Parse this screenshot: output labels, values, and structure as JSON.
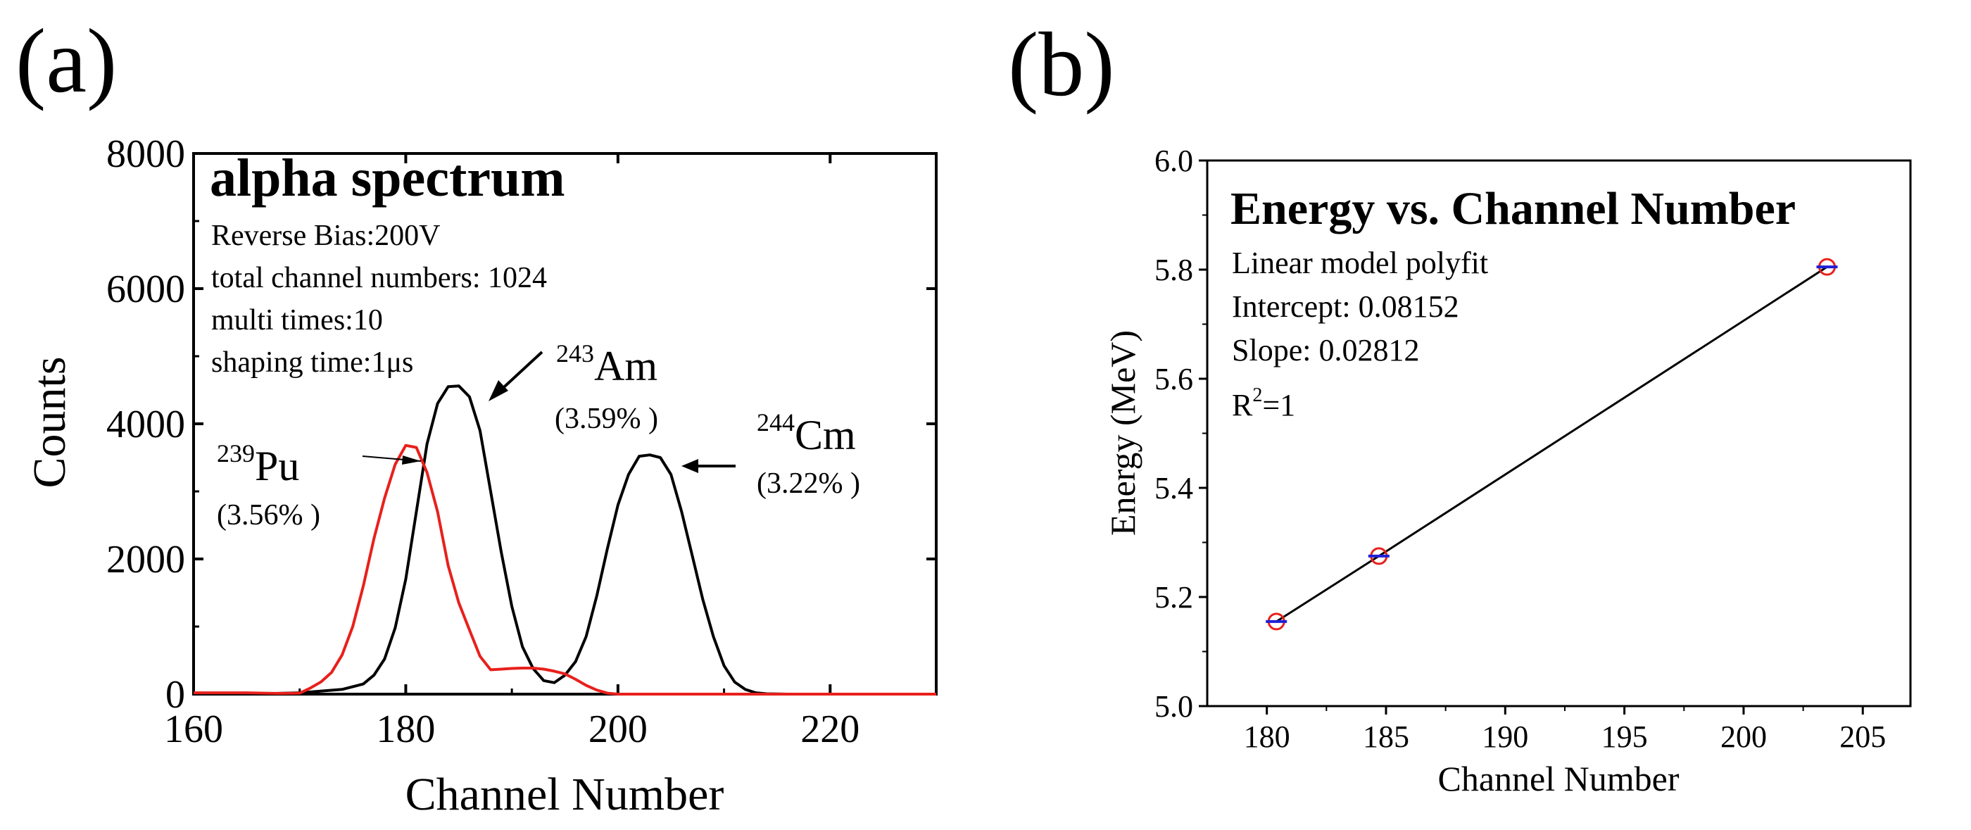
{
  "panel_a_label": "(a)",
  "panel_b_label": "(b)",
  "colors": {
    "series_am_cm": "#000000",
    "series_pu": "#e8201c",
    "marker_circle": "#e8201c",
    "marker_bar": "#1f1fd6"
  },
  "chart_data": [
    {
      "type": "line",
      "title": "alpha spectrum",
      "info_lines": [
        "Reverse Bias:200V",
        "total channel numbers: 1024",
        "multi times:10",
        "shaping time:1μs"
      ],
      "xlabel": "Channel Number",
      "ylabel": "Counts",
      "xlim": [
        160,
        230
      ],
      "ylim": [
        0,
        8000
      ],
      "xticks": [
        160,
        180,
        200,
        220
      ],
      "yticks": [
        0,
        2000,
        4000,
        6000,
        8000
      ],
      "series": [
        {
          "name": "243Am / 244Cm",
          "color": "#000000",
          "x": [
            160,
            165,
            170,
            174,
            176,
            177,
            178,
            179,
            180,
            181,
            182,
            183,
            184,
            185,
            186,
            187,
            188,
            189,
            190,
            191,
            192,
            193,
            194,
            195,
            196,
            197,
            198,
            199,
            200,
            201,
            202,
            203,
            204,
            205,
            206,
            207,
            208,
            209,
            210,
            211,
            212,
            213,
            214,
            216,
            220,
            230
          ],
          "y": [
            0,
            0,
            20,
            70,
            150,
            280,
            520,
            980,
            1700,
            2700,
            3700,
            4300,
            4550,
            4560,
            4400,
            3900,
            3000,
            2100,
            1300,
            700,
            380,
            200,
            170,
            280,
            480,
            850,
            1450,
            2150,
            2800,
            3250,
            3520,
            3540,
            3500,
            3250,
            2700,
            2050,
            1400,
            850,
            420,
            180,
            70,
            20,
            5,
            0,
            0,
            0
          ]
        },
        {
          "name": "239Pu",
          "color": "#e8201c",
          "x": [
            160,
            165,
            168,
            170,
            171,
            172,
            173,
            174,
            175,
            176,
            177,
            178,
            179,
            180,
            181,
            182,
            183,
            184,
            185,
            186,
            187,
            188,
            189,
            190,
            191,
            192,
            193,
            194,
            195,
            196,
            197,
            198,
            199,
            200,
            205,
            210,
            230
          ],
          "y": [
            20,
            20,
            10,
            15,
            90,
            180,
            320,
            580,
            1000,
            1600,
            2300,
            2900,
            3400,
            3680,
            3650,
            3280,
            2700,
            1900,
            1350,
            950,
            560,
            360,
            370,
            380,
            385,
            385,
            370,
            340,
            300,
            220,
            130,
            60,
            15,
            0,
            0,
            0,
            0
          ]
        }
      ],
      "annotations": [
        {
          "sup": "239",
          "label": "Pu",
          "resolution": "(3.56% )"
        },
        {
          "sup": "243",
          "label": "Am",
          "resolution": "(3.59% )"
        },
        {
          "sup": "244",
          "label": "Cm",
          "resolution": "(3.22% )"
        }
      ]
    },
    {
      "type": "scatter",
      "title": "Energy vs. Channel Number",
      "info_lines": [
        "Linear model polyfit",
        "Intercept: 0.08152",
        "Slope: 0.02812"
      ],
      "r2_prefix": "R",
      "r2_sup": "2",
      "r2_suffix": "=1",
      "xlabel": "Channel Number",
      "ylabel": "Energy (MeV)",
      "xlim": [
        177.5,
        207
      ],
      "ylim": [
        5.0,
        6.0
      ],
      "xticks": [
        180,
        185,
        190,
        195,
        200,
        205
      ],
      "yticks": [
        5.0,
        5.2,
        5.4,
        5.6,
        5.8,
        6.0
      ],
      "x": [
        180.4,
        184.7,
        203.5
      ],
      "y": [
        5.155,
        5.275,
        5.805
      ],
      "fit": {
        "intercept": 0.08152,
        "slope": 0.02812,
        "x_range": [
          180.4,
          203.5
        ]
      }
    }
  ]
}
